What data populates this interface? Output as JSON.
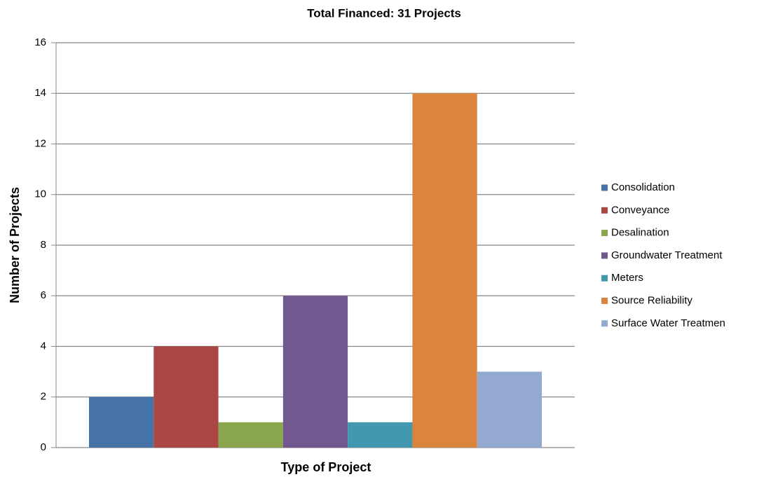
{
  "chart_data": {
    "type": "bar",
    "title": "Total Financed: 31 Projects",
    "xlabel": "Type of Project",
    "ylabel": "Number of Projects",
    "categories": [
      null
    ],
    "series": [
      {
        "name": "Consolidation",
        "color": "#4572a7",
        "values": [
          2
        ]
      },
      {
        "name": "Conveyance",
        "color": "#aa4643",
        "values": [
          4
        ]
      },
      {
        "name": "Desalination",
        "color": "#89a54e",
        "values": [
          1
        ]
      },
      {
        "name": "Groundwater Treatment",
        "color": "#71588f",
        "values": [
          6
        ]
      },
      {
        "name": "Meters",
        "color": "#4198af",
        "values": [
          1
        ]
      },
      {
        "name": "Source Reliability",
        "color": "#db843d",
        "values": [
          14
        ]
      },
      {
        "name": "Surface Water Treatmen",
        "color": "#93a9cf",
        "values": [
          3
        ]
      }
    ],
    "ylim": [
      0,
      16
    ],
    "yticks": [
      0,
      2,
      4,
      6,
      8,
      10,
      12,
      14,
      16
    ],
    "grid": true,
    "legend": "right"
  }
}
